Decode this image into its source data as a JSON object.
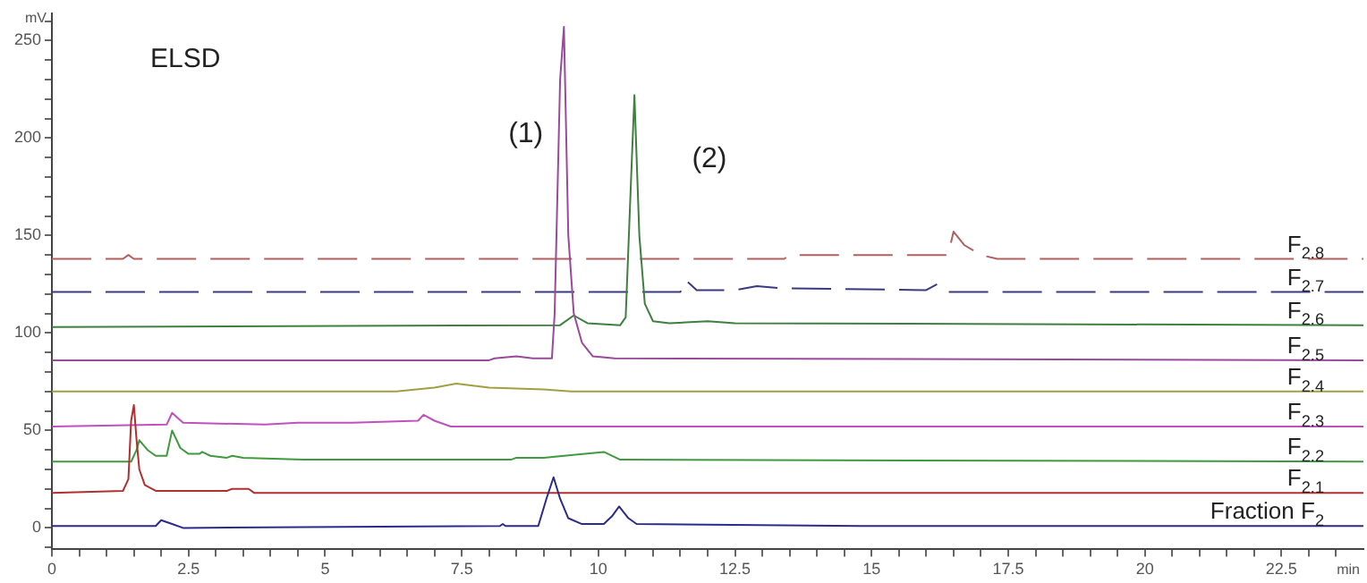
{
  "chart_data": {
    "type": "line",
    "xlabel": "min",
    "ylabel": "mV",
    "xlim": [
      0,
      24
    ],
    "ylim": [
      -11,
      264
    ],
    "xticks": [
      0,
      {
        "value": 0.5,
        "label": null
      },
      {
        "value": 1,
        "label": null
      },
      {
        "value": 1.5,
        "label": null
      },
      {
        "value": 2,
        "label": null
      },
      {
        "value": 2.5,
        "label": "2.5"
      },
      {
        "value": 3,
        "label": null
      },
      {
        "value": 3.5,
        "label": null
      },
      {
        "value": 4,
        "label": null
      },
      {
        "value": 4.5,
        "label": null
      },
      5,
      {
        "value": 5.5,
        "label": null
      },
      {
        "value": 6,
        "label": null
      },
      {
        "value": 6.5,
        "label": null
      },
      {
        "value": 7,
        "label": null
      },
      {
        "value": 7.5,
        "label": "7.5"
      },
      {
        "value": 8,
        "label": null
      },
      {
        "value": 8.5,
        "label": null
      },
      {
        "value": 9,
        "label": null
      },
      {
        "value": 9.5,
        "label": null
      },
      10,
      {
        "value": 10.5,
        "label": null
      },
      {
        "value": 11,
        "label": null
      },
      {
        "value": 11.5,
        "label": null
      },
      {
        "value": 12,
        "label": null
      },
      {
        "value": 12.5,
        "label": "12.5"
      },
      {
        "value": 13,
        "label": null
      },
      {
        "value": 13.5,
        "label": null
      },
      {
        "value": 14,
        "label": null
      },
      {
        "value": 14.5,
        "label": null
      },
      15,
      {
        "value": 15.5,
        "label": null
      },
      {
        "value": 16,
        "label": null
      },
      {
        "value": 16.5,
        "label": null
      },
      {
        "value": 17,
        "label": null
      },
      {
        "value": 17.5,
        "label": "17.5"
      },
      {
        "value": 18,
        "label": null
      },
      {
        "value": 18.5,
        "label": null
      },
      {
        "value": 19,
        "label": null
      },
      {
        "value": 19.5,
        "label": null
      },
      20,
      {
        "value": 20.5,
        "label": null
      },
      {
        "value": 21,
        "label": null
      },
      {
        "value": 21.5,
        "label": null
      },
      {
        "value": 22,
        "label": null
      },
      {
        "value": 22.5,
        "label": "22.5"
      },
      {
        "value": 23,
        "label": null
      },
      {
        "value": 23.5,
        "label": null
      }
    ],
    "yticks": [
      {
        "value": -10,
        "label": null
      },
      0,
      {
        "value": 10,
        "label": null
      },
      {
        "value": 20,
        "label": null
      },
      {
        "value": 30,
        "label": null
      },
      {
        "value": 40,
        "label": null
      },
      50,
      {
        "value": 60,
        "label": null
      },
      {
        "value": 70,
        "label": null
      },
      {
        "value": 80,
        "label": null
      },
      {
        "value": 90,
        "label": null
      },
      100,
      {
        "value": 110,
        "label": null
      },
      {
        "value": 120,
        "label": null
      },
      {
        "value": 130,
        "label": null
      },
      {
        "value": 140,
        "label": null
      },
      150,
      {
        "value": 160,
        "label": null
      },
      {
        "value": 170,
        "label": null
      },
      {
        "value": 180,
        "label": null
      },
      {
        "value": 190,
        "label": null
      },
      200,
      {
        "value": 210,
        "label": null
      },
      {
        "value": 220,
        "label": null
      },
      {
        "value": 230,
        "label": null
      },
      {
        "value": 240,
        "label": null
      },
      250,
      {
        "value": 260,
        "label": null
      }
    ],
    "grid": false,
    "legend": false,
    "marker": "none",
    "line_style": "solid",
    "annotations": [
      "ELSD",
      "(1)",
      "(2)"
    ],
    "series": [
      {
        "name": "Fraction F$_{2}$",
        "color": "#2b2b8c",
        "x": [
          0,
          1.9,
          2.0,
          2.2,
          2.4,
          8.2,
          8.25,
          8.3,
          8.9,
          9.05,
          9.18,
          9.3,
          9.45,
          9.7,
          10.1,
          10.25,
          10.38,
          10.55,
          10.7,
          14.8,
          24
        ],
        "values": [
          1,
          1,
          4,
          2,
          0,
          1,
          2,
          1,
          1,
          15,
          26,
          15,
          5,
          2,
          2,
          6,
          11,
          5,
          2,
          1,
          1
        ]
      },
      {
        "name": "F$_{2.1}$",
        "color": "#b03030",
        "x": [
          0,
          1.3,
          1.4,
          1.45,
          1.5,
          1.55,
          1.6,
          1.7,
          1.9,
          3.2,
          3.3,
          3.6,
          3.7,
          24
        ],
        "values": [
          18,
          19,
          25,
          55,
          63,
          45,
          30,
          22,
          19,
          19,
          20,
          20,
          18,
          18
        ]
      },
      {
        "name": "F$_{2.2}$",
        "color": "#3f9a3f",
        "x": [
          0,
          1.45,
          1.55,
          1.6,
          1.75,
          1.9,
          2.1,
          2.2,
          2.35,
          2.5,
          2.7,
          2.75,
          2.9,
          3.2,
          3.3,
          3.5,
          4.6,
          8.4,
          8.5,
          9.0,
          10.1,
          10.4,
          24
        ],
        "values": [
          34,
          34,
          40,
          45,
          40,
          37,
          37,
          50,
          41,
          38,
          38,
          39,
          37,
          36,
          37,
          36,
          35,
          35,
          36,
          36,
          39,
          35,
          34
        ]
      },
      {
        "name": "F$_{2.3}$",
        "color": "#c050c0",
        "x": [
          0,
          2.1,
          2.2,
          2.4,
          3.9,
          4.5,
          5.5,
          6.7,
          6.8,
          7.0,
          7.3,
          24
        ],
        "values": [
          52,
          53,
          59,
          54,
          53,
          54,
          54,
          55,
          58,
          55,
          52,
          52
        ]
      },
      {
        "name": "F$_{2.4}$",
        "color": "#a0a040",
        "x": [
          0,
          6.3,
          7,
          7.4,
          8,
          9,
          9.5,
          24
        ],
        "values": [
          70,
          70,
          72,
          74,
          72,
          71,
          70,
          70
        ]
      },
      {
        "name": "F$_{2.5}$",
        "color": "#9a4a9a",
        "x": [
          0,
          8.0,
          8.1,
          8.5,
          8.8,
          9.15,
          9.2,
          9.3,
          9.37,
          9.45,
          9.55,
          9.7,
          9.9,
          10.3,
          24
        ],
        "values": [
          86,
          86,
          87,
          88,
          87,
          87,
          110,
          230,
          257,
          150,
          110,
          95,
          88,
          87,
          86
        ]
      },
      {
        "name": "F$_{2.6}$",
        "color": "#3f7f3f",
        "x": [
          0,
          9.3,
          9.55,
          9.8,
          10.4,
          10.5,
          10.6,
          10.66,
          10.75,
          10.85,
          11,
          11.3,
          12,
          12.5,
          24
        ],
        "values": [
          103,
          104,
          109,
          105,
          104,
          108,
          180,
          222,
          150,
          115,
          106,
          105,
          106,
          105,
          104
        ]
      },
      {
        "name": "F$_{2.7}$",
        "color": "#3a3a80",
        "line_style": "dashed",
        "x": [
          0,
          11.5,
          11.6,
          11.8,
          12.5,
          12.9,
          13.3,
          16,
          16.2,
          16.4,
          24
        ],
        "values": [
          121,
          121,
          127,
          122,
          122,
          124,
          123,
          122,
          125,
          121,
          121
        ]
      },
      {
        "name": "F$_{2.8}$",
        "color": "#b06060",
        "line_style": "dashed",
        "x": [
          0,
          1.3,
          1.4,
          1.5,
          13.4,
          13.5,
          16.4,
          16.5,
          16.7,
          17,
          17.3,
          24
        ],
        "values": [
          138,
          138,
          140,
          138,
          138,
          140,
          140,
          152,
          145,
          140,
          138,
          138
        ]
      }
    ]
  }
}
